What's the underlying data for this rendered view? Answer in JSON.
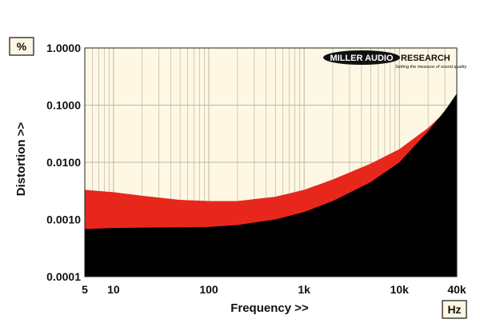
{
  "chart_data": {
    "type": "area",
    "title": "",
    "xlabel": "Frequency >>",
    "ylabel": "Distortion >>",
    "x_unit": "Hz",
    "y_unit": "%",
    "x_scale": "log",
    "y_scale": "log",
    "xlim": [
      5,
      40000
    ],
    "ylim": [
      0.0001,
      1.0
    ],
    "grid": true,
    "x_ticks": [
      "5",
      "10",
      "100",
      "1k",
      "10k",
      "40k"
    ],
    "y_ticks": [
      "0.0001",
      "0.0010",
      "0.0100",
      "0.1000",
      "1.0000"
    ],
    "logo": {
      "text_left": "MILLER AUDIO",
      "text_right": "RESEARCH",
      "tagline": "Setting the measure of sound quality"
    },
    "series": [
      {
        "color": "#e8271c",
        "x": [
          5,
          10,
          20,
          50,
          100,
          200,
          500,
          1000,
          2000,
          5000,
          10000,
          20000,
          30000,
          40000
        ],
        "values": [
          0.0033,
          0.003,
          0.0026,
          0.0022,
          0.0021,
          0.0021,
          0.0025,
          0.0033,
          0.005,
          0.0095,
          0.017,
          0.04,
          0.075,
          0.13
        ]
      },
      {
        "color": "#000000",
        "x": [
          5,
          10,
          20,
          50,
          100,
          200,
          500,
          1000,
          2000,
          5000,
          10000,
          20000,
          30000,
          40000
        ],
        "values": [
          0.00068,
          0.00071,
          0.00072,
          0.00073,
          0.00074,
          0.0008,
          0.001,
          0.00135,
          0.0021,
          0.0045,
          0.01,
          0.035,
          0.08,
          0.16
        ]
      }
    ],
    "colors": {
      "background": "#fdf7e3",
      "grid": "#bdb7a5",
      "unit_box": "#fdf7e3"
    }
  }
}
